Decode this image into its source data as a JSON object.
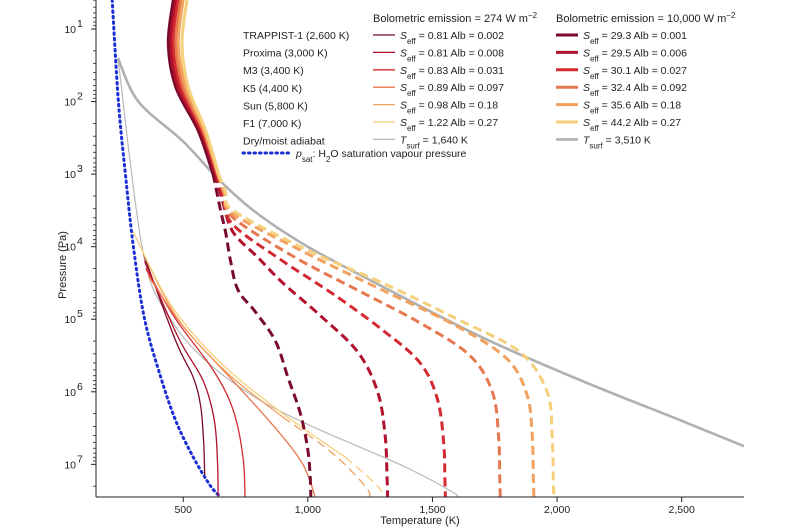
{
  "chart_data": {
    "type": "line",
    "xlabel": "Temperature (K)",
    "ylabel": "Pressure (Pa)",
    "xlim": [
      150,
      2750
    ],
    "ylim_log10": [
      0.6,
      7.45
    ],
    "y_inverted": true,
    "x_ticks": [
      {
        "value": 500,
        "label": "500"
      },
      {
        "value": 1000,
        "label": "1,000"
      },
      {
        "value": 1500,
        "label": "1,500"
      },
      {
        "value": 2000,
        "label": "2,000"
      },
      {
        "value": 2500,
        "label": "2,500"
      }
    ],
    "y_ticks": [
      {
        "exp": 1,
        "base": "10",
        "sup": "1"
      },
      {
        "exp": 2,
        "base": "10",
        "sup": "2"
      },
      {
        "exp": 3,
        "base": "10",
        "sup": "3"
      },
      {
        "exp": 4,
        "base": "10",
        "sup": "4"
      },
      {
        "exp": 5,
        "base": "10",
        "sup": "5"
      },
      {
        "exp": 6,
        "base": "10",
        "sup": "6"
      },
      {
        "exp": 7,
        "base": "10",
        "sup": "7"
      }
    ],
    "stars": [
      "TRAPPIST-1 (2,600 K)",
      "Proxima (3,000 K)",
      "M3 (3,400 K)",
      "K5 (4,400 K)",
      "Sun (5,800 K)",
      "F1 (7,000 K)"
    ],
    "adiabat_label": "Dry/moist adiabat",
    "psat": {
      "label_p": "p",
      "label_sub": "sat",
      "label_rest": ": H",
      "label_sub2": "2",
      "label_tail": "O saturation vapour pressure",
      "color": "#1b2fd6",
      "points": [
        [
          215,
          0.6
        ],
        [
          240,
          2
        ],
        [
          268,
          3
        ],
        [
          300,
          4
        ],
        [
          345,
          5
        ],
        [
          410,
          5.8
        ],
        [
          470,
          6.4
        ],
        [
          540,
          6.9
        ],
        [
          610,
          7.3
        ],
        [
          650,
          7.45
        ]
      ]
    },
    "groups": [
      {
        "header_prefix": "Bolometric emission = 274 W m",
        "header_sup": "−2",
        "surface": {
          "label_prefix": "T",
          "label_sub": "surf",
          "label_value": " = 1,640 K",
          "color": "#b8b8b8",
          "width": 1.2,
          "points": [
            [
              238,
              1.4
            ],
            [
              340,
              4.1
            ],
            [
              450,
              5.0
            ],
            [
              600,
              5.6
            ],
            [
              800,
              6.1
            ],
            [
              1000,
              6.45
            ],
            [
              1200,
              6.75
            ],
            [
              1400,
              7.05
            ],
            [
              1580,
              7.38
            ],
            [
              1600,
              7.45
            ]
          ]
        },
        "series": [
          {
            "s": "0.81",
            "alb": "0.002",
            "color": "#7a0a2c",
            "width": 1.3,
            "points": [
              [
                340,
                4.1
              ],
              [
                470,
                5.3
              ],
              [
                540,
                5.8
              ],
              [
                570,
                6.2
              ],
              [
                582,
                6.7
              ],
              [
                586,
                7.15
              ]
            ]
          },
          {
            "s": "0.81",
            "alb": "0.008",
            "color": "#b0112d",
            "width": 1.3,
            "points": [
              [
                345,
                4.2
              ],
              [
                480,
                5.25
              ],
              [
                580,
                5.85
              ],
              [
                625,
                6.4
              ],
              [
                638,
                7.0
              ],
              [
                640,
                7.45
              ]
            ]
          },
          {
            "s": "0.83",
            "alb": "0.031",
            "color": "#d42a32",
            "width": 1.3,
            "points": [
              [
                350,
                4.3
              ],
              [
                470,
                5.0
              ],
              [
                620,
                5.7
              ],
              [
                700,
                6.25
              ],
              [
                740,
                6.9
              ],
              [
                748,
                7.45
              ]
            ]
          },
          {
            "s": "0.89",
            "alb": "0.097",
            "color": "#e6784f",
            "width": 1.3,
            "points": [
              [
                360,
                4.4
              ],
              [
                500,
                5.1
              ],
              [
                700,
                5.85
              ],
              [
                870,
                6.5
              ],
              [
                980,
                7.0
              ],
              [
                1030,
                7.45
              ]
            ]
          },
          {
            "s": "0.98",
            "alb": "0.18",
            "color": "#f2a15e",
            "width": 1.3,
            "dash_index": 3,
            "points": [
              [
                340,
                4.1
              ],
              [
                480,
                5.0
              ],
              [
                680,
                5.75
              ],
              [
                900,
                6.35
              ],
              [
                1100,
                6.85
              ],
              [
                1230,
                7.3
              ],
              [
                1250,
                7.45
              ]
            ]
          },
          {
            "s": "1.22",
            "alb": "0.27",
            "color": "#f5cf7a",
            "width": 1.3,
            "dash_index": 4,
            "points": [
              [
                300,
                3.8
              ],
              [
                450,
                4.8
              ],
              [
                650,
                5.6
              ],
              [
                900,
                6.3
              ],
              [
                1150,
                6.9
              ],
              [
                1280,
                7.3
              ],
              [
                1300,
                7.45
              ]
            ]
          }
        ]
      },
      {
        "header_prefix": "Bolometric emission = 10,000 W m",
        "header_sup": "−2",
        "surface": {
          "label_prefix": "T",
          "label_sub": "surf",
          "label_value": " = 3,510 K",
          "color": "#b0b0b0",
          "width": 2.6,
          "points": [
            [
              238,
              1.4
            ],
            [
              320,
              2.0
            ],
            [
              500,
              2.55
            ],
            [
              650,
              3.1
            ],
            [
              800,
              3.55
            ],
            [
              1000,
              4.0
            ],
            [
              1300,
              4.55
            ],
            [
              1700,
              5.25
            ],
            [
              2100,
              5.85
            ],
            [
              2500,
              6.4
            ],
            [
              2750,
              6.75
            ]
          ]
        },
        "series": [
          {
            "s": "29.3",
            "alb": "0.001",
            "color": "#7a0a2c",
            "width": 3.0,
            "dash_index": 4,
            "points": [
              [
                460,
                0.6
              ],
              [
                440,
                1.2
              ],
              [
                470,
                1.8
              ],
              [
                560,
                2.4
              ],
              [
                620,
                3.0
              ],
              [
                650,
                3.5
              ],
              [
                670,
                3.8
              ],
              [
                690,
                4.2
              ],
              [
                720,
                4.6
              ],
              [
                790,
                4.9
              ],
              [
                870,
                5.3
              ],
              [
                920,
                5.8
              ],
              [
                970,
                6.3
              ],
              [
                1000,
                6.8
              ],
              [
                1010,
                7.2
              ],
              [
                1012,
                7.45
              ]
            ]
          },
          {
            "s": "29.5",
            "alb": "0.006",
            "color": "#b0112d",
            "width": 3.0,
            "dash_index": 4,
            "points": [
              [
                470,
                0.6
              ],
              [
                450,
                1.2
              ],
              [
                480,
                1.8
              ],
              [
                570,
                2.4
              ],
              [
                630,
                3.0
              ],
              [
                660,
                3.4
              ],
              [
                700,
                3.8
              ],
              [
                800,
                4.15
              ],
              [
                900,
                4.5
              ],
              [
                1050,
                4.95
              ],
              [
                1200,
                5.45
              ],
              [
                1280,
                6.0
              ],
              [
                1310,
                6.6
              ],
              [
                1318,
                7.2
              ],
              [
                1320,
                7.45
              ]
            ]
          },
          {
            "s": "30.1",
            "alb": "0.027",
            "color": "#d42a32",
            "width": 3.0,
            "dash_index": 4,
            "points": [
              [
                480,
                0.6
              ],
              [
                460,
                1.2
              ],
              [
                490,
                1.8
              ],
              [
                575,
                2.4
              ],
              [
                635,
                3.0
              ],
              [
                665,
                3.35
              ],
              [
                700,
                3.7
              ],
              [
                900,
                4.2
              ],
              [
                1100,
                4.65
              ],
              [
                1300,
                5.15
              ],
              [
                1450,
                5.6
              ],
              [
                1520,
                6.1
              ],
              [
                1545,
                6.7
              ],
              [
                1550,
                7.2
              ],
              [
                1552,
                7.45
              ]
            ]
          },
          {
            "s": "32.4",
            "alb": "0.092",
            "color": "#e6784f",
            "width": 3.0,
            "dash_index": 4,
            "points": [
              [
                490,
                0.6
              ],
              [
                470,
                1.2
              ],
              [
                500,
                1.8
              ],
              [
                580,
                2.4
              ],
              [
                638,
                3.0
              ],
              [
                668,
                3.3
              ],
              [
                700,
                3.6
              ],
              [
                950,
                4.15
              ],
              [
                1200,
                4.6
              ],
              [
                1450,
                5.05
              ],
              [
                1650,
                5.5
              ],
              [
                1740,
                6.0
              ],
              [
                1765,
                6.6
              ],
              [
                1770,
                7.2
              ],
              [
                1772,
                7.45
              ]
            ]
          },
          {
            "s": "35.6",
            "alb": "0.18",
            "color": "#f2a15e",
            "width": 3.0,
            "dash_index": 4,
            "points": [
              [
                500,
                0.6
              ],
              [
                480,
                1.2
              ],
              [
                510,
                1.8
              ],
              [
                585,
                2.4
              ],
              [
                640,
                3.0
              ],
              [
                668,
                3.3
              ],
              [
                700,
                3.55
              ],
              [
                1000,
                4.1
              ],
              [
                1300,
                4.6
              ],
              [
                1600,
                5.1
              ],
              [
                1800,
                5.55
              ],
              [
                1880,
                6.05
              ],
              [
                1900,
                6.6
              ],
              [
                1905,
                7.2
              ],
              [
                1907,
                7.45
              ]
            ]
          },
          {
            "s": "44.2",
            "alb": "0.27",
            "color": "#f5cf7a",
            "width": 3.0,
            "dash_index": 4,
            "points": [
              [
                515,
                0.6
              ],
              [
                495,
                1.2
              ],
              [
                520,
                1.8
              ],
              [
                590,
                2.4
              ],
              [
                642,
                3.0
              ],
              [
                670,
                3.25
              ],
              [
                700,
                3.5
              ],
              [
                1000,
                4.05
              ],
              [
                1300,
                4.5
              ],
              [
                1600,
                5.0
              ],
              [
                1850,
                5.45
              ],
              [
                1960,
                6.0
              ],
              [
                1980,
                6.6
              ],
              [
                1985,
                7.2
              ],
              [
                1987,
                7.45
              ]
            ]
          }
        ]
      }
    ]
  }
}
